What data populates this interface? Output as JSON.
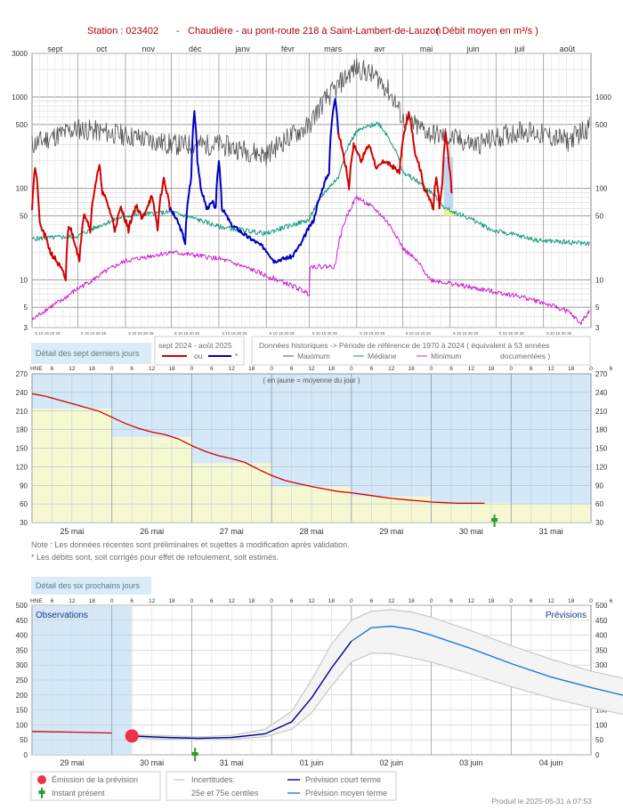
{
  "title": {
    "station": "Station : 023402",
    "sep": "-",
    "name": "Chaudière - au pont-route 218 à Saint-Lambert-de-Lauzon",
    "unit": "( Débit moyen en m³/s )"
  },
  "colors": {
    "obs": "#d40000",
    "obs_corr": "#0000c0",
    "max": "#505050",
    "median": "#139a7b",
    "min": "#d020d0",
    "forecast_short": "#00008b",
    "forecast_long": "#2079d8",
    "band": "#c8c8c8",
    "blue_fill": "#d4e8f8",
    "yellow_fill": "#f6f8d2",
    "emission": "#f0304a",
    "now": "#2a9d2a",
    "label_box": "#d9ecf8"
  },
  "chart_data": [
    {
      "id": "annual",
      "type": "line",
      "scale": "log",
      "ylim": [
        3,
        3000
      ],
      "yticks": [
        3,
        5,
        10,
        50,
        100,
        500,
        1000,
        3000
      ],
      "yticks_right": [
        3,
        5,
        10,
        50,
        100,
        500,
        1000
      ],
      "months": [
        "sept",
        "oct",
        "nov",
        "déc",
        "janv",
        "févr",
        "mars",
        "avr",
        "mai",
        "juin",
        "juil",
        "août"
      ],
      "month_lengths": [
        30,
        31,
        30,
        31,
        31,
        28,
        31,
        30,
        31,
        30,
        31,
        31
      ],
      "day_ticks": "5 10 15 20 25",
      "series": [
        {
          "name": "Maximum",
          "key": "max",
          "knots": [
            [
              0,
              300
            ],
            [
              30,
              450
            ],
            [
              61,
              380
            ],
            [
              91,
              300
            ],
            [
              122,
              300
            ],
            [
              153,
              230
            ],
            [
              181,
              480
            ],
            [
              198,
              1200
            ],
            [
              212,
              2100
            ],
            [
              226,
              1600
            ],
            [
              242,
              560
            ],
            [
              260,
              400
            ],
            [
              290,
              300
            ],
            [
              320,
              430
            ],
            [
              350,
              330
            ],
            [
              364,
              470
            ]
          ],
          "noise": 0.55,
          "seed": 11
        },
        {
          "name": "Médiane",
          "key": "median",
          "knots": [
            [
              0,
              28
            ],
            [
              30,
              30
            ],
            [
              61,
              50
            ],
            [
              91,
              55
            ],
            [
              122,
              38
            ],
            [
              153,
              32
            ],
            [
              181,
              45
            ],
            [
              200,
              130
            ],
            [
              212,
              420
            ],
            [
              226,
              520
            ],
            [
              242,
              150
            ],
            [
              270,
              60
            ],
            [
              300,
              35
            ],
            [
              330,
              27
            ],
            [
              364,
              25
            ]
          ],
          "noise": 0.12,
          "seed": 5
        },
        {
          "name": "Minimum",
          "key": "min",
          "knots": [
            [
              0,
              3.6
            ],
            [
              20,
              6
            ],
            [
              40,
              10
            ],
            [
              61,
              16
            ],
            [
              91,
              20
            ],
            [
              122,
              17
            ],
            [
              153,
              11
            ],
            [
              181,
              7
            ],
            [
              181,
              14
            ],
            [
              198,
              14
            ],
            [
              212,
              80
            ],
            [
              226,
              55
            ],
            [
              242,
              22
            ],
            [
              260,
              10
            ],
            [
              290,
              8
            ],
            [
              320,
              6.5
            ],
            [
              350,
              4.5
            ],
            [
              358,
              3.3
            ],
            [
              364,
              4.5
            ]
          ],
          "noise": 0.12,
          "seed": 8
        },
        {
          "name": "sept 2024 - août 2025",
          "key": "obs",
          "knots": [
            [
              0,
              60
            ],
            [
              2,
              170
            ],
            [
              5,
              40
            ],
            [
              12,
              20
            ],
            [
              22,
              10
            ],
            [
              24,
              40
            ],
            [
              31,
              15
            ],
            [
              34,
              55
            ],
            [
              38,
              35
            ],
            [
              44,
              170
            ],
            [
              46,
              90
            ],
            [
              54,
              35
            ],
            [
              58,
              60
            ],
            [
              63,
              35
            ],
            [
              68,
              65
            ],
            [
              72,
              45
            ],
            [
              78,
              80
            ],
            [
              82,
              35
            ],
            [
              86,
              125
            ],
            [
              90,
              60
            ]
          ],
          "noise": 0.15,
          "seed": 21
        },
        {
          "name": "*",
          "key": "obs_corr",
          "knots": [
            [
              90,
              60
            ],
            [
              96,
              40
            ],
            [
              100,
              25
            ],
            [
              104,
              130
            ],
            [
              106,
              700
            ],
            [
              108,
              200
            ],
            [
              110,
              100
            ],
            [
              114,
              60
            ],
            [
              118,
              70
            ],
            [
              120,
              60
            ],
            [
              122,
              200
            ],
            [
              124,
              60
            ],
            [
              130,
              40
            ],
            [
              140,
              30
            ],
            [
              152,
              22
            ],
            [
              158,
              16
            ],
            [
              170,
              18
            ],
            [
              176,
              25
            ],
            [
              184,
              45
            ],
            [
              188,
              80
            ],
            [
              194,
              150
            ],
            [
              198,
              1000
            ],
            [
              200,
              400
            ]
          ],
          "noise": 0.1,
          "seed": 3
        },
        {
          "name": "ou",
          "key": "obs2",
          "knots": [
            [
              200,
              400
            ],
            [
              204,
              200
            ],
            [
              207,
              100
            ],
            [
              210,
              300
            ],
            [
              215,
              200
            ],
            [
              220,
              300
            ],
            [
              225,
              160
            ],
            [
              230,
              200
            ],
            [
              240,
              150
            ],
            [
              246,
              650
            ],
            [
              250,
              250
            ],
            [
              256,
              100
            ],
            [
              262,
              60
            ],
            [
              264,
              140
            ],
            [
              266,
              60
            ],
            [
              268,
              110
            ],
            [
              270,
              400
            ],
            [
              272,
              200
            ],
            [
              274,
              90
            ]
          ],
          "noise": 0.12,
          "seed": 17
        }
      ],
      "highlight_band": {
        "from": 269,
        "to": 275,
        "lo": 50,
        "hi": 220
      }
    },
    {
      "id": "week",
      "type": "line",
      "ylim": [
        30,
        270
      ],
      "yticks": [
        30,
        60,
        90,
        120,
        150,
        180,
        210,
        240,
        270
      ],
      "days": [
        "25 mai",
        "26 mai",
        "27 mai",
        "28 mai",
        "29 mai",
        "30 mai",
        "31 mai"
      ],
      "hour_ticks": [
        "HNE",
        "6",
        "12",
        "18",
        "0",
        "6",
        "12",
        "18",
        "0",
        "6",
        "12",
        "18",
        "0",
        "6",
        "12",
        "18",
        "0",
        "6",
        "12",
        "18",
        "0",
        "6",
        "12",
        "18",
        "0",
        "6",
        "12",
        "18",
        "0",
        "6",
        "12",
        "18"
      ],
      "flow": [
        [
          0,
          238
        ],
        [
          4,
          234
        ],
        [
          8,
          228
        ],
        [
          12,
          222
        ],
        [
          16,
          216
        ],
        [
          20,
          210
        ],
        [
          24,
          200
        ],
        [
          28,
          190
        ],
        [
          32,
          182
        ],
        [
          36,
          176
        ],
        [
          40,
          172
        ],
        [
          44,
          165
        ],
        [
          48,
          154
        ],
        [
          52,
          145
        ],
        [
          56,
          138
        ],
        [
          60,
          133
        ],
        [
          64,
          127
        ],
        [
          68,
          116
        ],
        [
          72,
          106
        ],
        [
          76,
          98
        ],
        [
          80,
          93
        ],
        [
          84,
          88
        ],
        [
          88,
          84
        ],
        [
          92,
          80
        ],
        [
          96,
          78
        ],
        [
          100,
          75
        ],
        [
          104,
          72
        ],
        [
          108,
          69
        ],
        [
          112,
          67
        ],
        [
          116,
          65
        ],
        [
          120,
          63
        ],
        [
          124,
          62
        ],
        [
          128,
          61
        ],
        [
          132,
          61
        ],
        [
          136,
          61
        ]
      ],
      "daily_mean": [
        214,
        168,
        126,
        88,
        72,
        62
      ],
      "now_hour": 139,
      "annotation": "( en jaune = moyenne du jour )"
    },
    {
      "id": "forecast",
      "type": "line",
      "ylim": [
        0,
        500
      ],
      "yticks": [
        0,
        50,
        100,
        150,
        200,
        250,
        300,
        350,
        400,
        450,
        500
      ],
      "days": [
        "29 mai",
        "30 mai",
        "31 mai",
        "01 juin",
        "02 juin",
        "03 juin",
        "04 juin"
      ],
      "hour_ticks": [
        "HNE",
        "6",
        "12",
        "18",
        "0",
        "6",
        "12",
        "18",
        "0",
        "6",
        "12",
        "18",
        "0",
        "6",
        "12",
        "18",
        "0",
        "6",
        "12",
        "18",
        "0",
        "6",
        "12",
        "18",
        "0",
        "6",
        "12",
        "18",
        "0",
        "6",
        "12",
        "18"
      ],
      "observed": [
        [
          0,
          78
        ],
        [
          12,
          76
        ],
        [
          24,
          73
        ],
        [
          36,
          70
        ],
        [
          48,
          67
        ],
        [
          56,
          65
        ],
        [
          60,
          63
        ],
        [
          66,
          62
        ],
        [
          72,
          60
        ],
        [
          80,
          58
        ],
        [
          90,
          57
        ]
      ],
      "emission_hour": 30,
      "now_hour": 49,
      "median": [
        [
          30,
          63
        ],
        [
          40,
          58
        ],
        [
          50,
          55
        ],
        [
          60,
          58
        ],
        [
          70,
          70
        ],
        [
          78,
          110
        ],
        [
          84,
          190
        ],
        [
          90,
          290
        ],
        [
          96,
          380
        ],
        [
          102,
          425
        ],
        [
          108,
          430
        ],
        [
          114,
          420
        ],
        [
          120,
          400
        ],
        [
          132,
          355
        ],
        [
          144,
          305
        ],
        [
          156,
          260
        ],
        [
          168,
          225
        ],
        [
          180,
          193
        ],
        [
          192,
          170
        ],
        [
          196,
          162
        ]
      ],
      "p25": [
        [
          30,
          58
        ],
        [
          40,
          52
        ],
        [
          50,
          50
        ],
        [
          60,
          52
        ],
        [
          70,
          60
        ],
        [
          78,
          85
        ],
        [
          84,
          140
        ],
        [
          90,
          230
        ],
        [
          96,
          310
        ],
        [
          102,
          340
        ],
        [
          108,
          338
        ],
        [
          114,
          325
        ],
        [
          120,
          310
        ],
        [
          132,
          270
        ],
        [
          144,
          228
        ],
        [
          156,
          190
        ],
        [
          168,
          158
        ],
        [
          180,
          130
        ],
        [
          192,
          110
        ],
        [
          196,
          103
        ]
      ],
      "p75": [
        [
          30,
          68
        ],
        [
          40,
          64
        ],
        [
          50,
          60
        ],
        [
          60,
          65
        ],
        [
          70,
          85
        ],
        [
          78,
          145
        ],
        [
          84,
          250
        ],
        [
          90,
          370
        ],
        [
          96,
          450
        ],
        [
          102,
          480
        ],
        [
          108,
          485
        ],
        [
          114,
          478
        ],
        [
          120,
          460
        ],
        [
          132,
          415
        ],
        [
          144,
          365
        ],
        [
          156,
          320
        ],
        [
          168,
          280
        ],
        [
          180,
          250
        ],
        [
          192,
          225
        ],
        [
          196,
          215
        ]
      ],
      "obs_label": "Observations",
      "prev_label": "Prévisions"
    }
  ],
  "legend": {
    "title_period": "sept 2024 - août 2025",
    "ou": "ou",
    "star": "*",
    "histo_title": "Données historiques -> Période de référence  de 1970 à 2024   ( équivalent à 53 années",
    "max": "Maximum",
    "median": "Médiane",
    "min": "Minimum",
    "documented": "documentées )"
  },
  "labels": {
    "box1": "Détail des sept derniers jours",
    "box2": "Détail des six prochains jours",
    "note1": "Note : Les données récentes sont préliminaires et sujettes à modification après validation.",
    "note2": "* Les débits sont, soit corrigés pour effet de refoulement, soit estimés.",
    "emission": "Émission de la prévision",
    "now": "Instant présent",
    "uncert1": "Incertitudes:",
    "uncert2": "25e et 75e centiles",
    "short": "Prévision court terme",
    "long": "Prévision moyen terme",
    "produced": "Produit le 2025-05-31 à 07:53"
  }
}
